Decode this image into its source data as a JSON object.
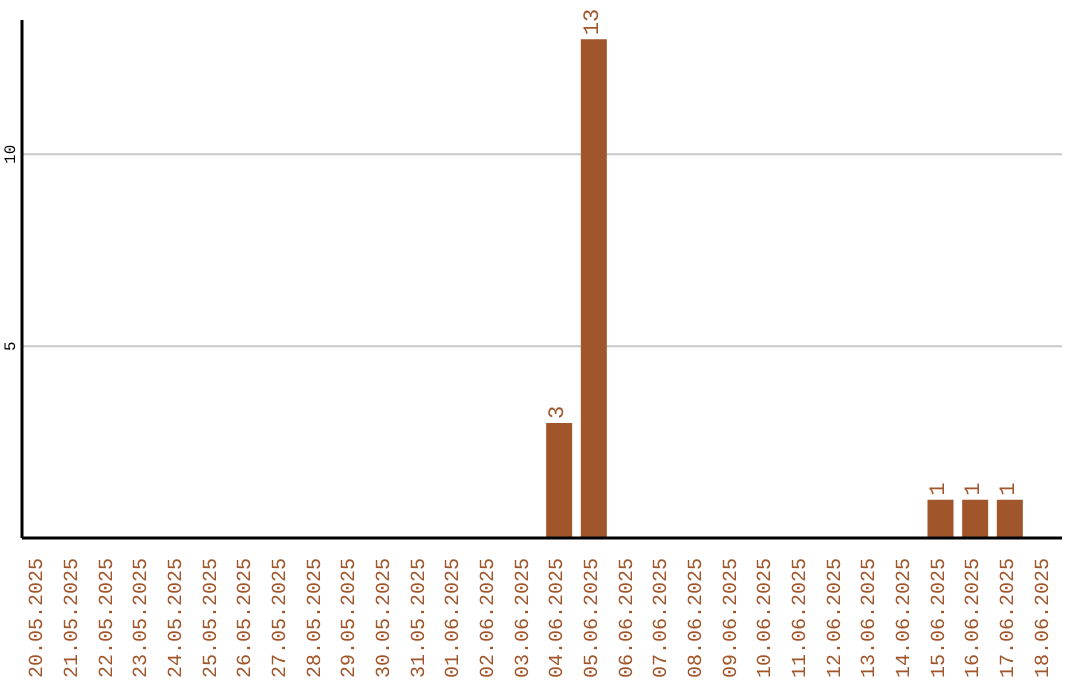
{
  "chart_data": {
    "type": "bar",
    "categories": [
      "20.05.2025",
      "21.05.2025",
      "22.05.2025",
      "23.05.2025",
      "24.05.2025",
      "25.05.2025",
      "26.05.2025",
      "27.05.2025",
      "28.05.2025",
      "29.05.2025",
      "30.05.2025",
      "31.05.2025",
      "01.06.2025",
      "02.06.2025",
      "03.06.2025",
      "04.06.2025",
      "05.06.2025",
      "06.06.2025",
      "07.06.2025",
      "08.06.2025",
      "09.06.2025",
      "10.06.2025",
      "11.06.2025",
      "12.06.2025",
      "13.06.2025",
      "14.06.2025",
      "15.06.2025",
      "16.06.2025",
      "17.06.2025",
      "18.06.2025"
    ],
    "values": [
      0,
      0,
      0,
      0,
      0,
      0,
      0,
      0,
      0,
      0,
      0,
      0,
      0,
      0,
      0,
      3,
      13,
      0,
      0,
      0,
      0,
      0,
      0,
      0,
      0,
      0,
      1,
      1,
      1,
      0
    ],
    "value_labels": [
      null,
      null,
      null,
      null,
      null,
      null,
      null,
      null,
      null,
      null,
      null,
      null,
      null,
      null,
      null,
      "3",
      "13",
      null,
      null,
      null,
      null,
      null,
      null,
      null,
      null,
      null,
      "1",
      "1",
      "1",
      null
    ],
    "color": "#a0562a",
    "ylim": [
      0,
      13.5
    ],
    "yticks": [
      5,
      10
    ],
    "grid": "y"
  }
}
